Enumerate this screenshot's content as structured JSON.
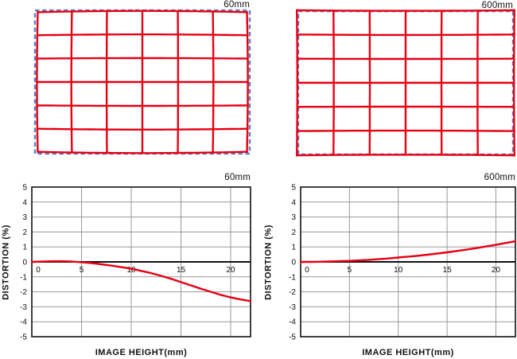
{
  "figure": {
    "background": "#ffffff",
    "description_colors": {
      "red_line": "#e60012",
      "blue_dashed_reference": "#5f7fc4",
      "gridline_gray": "#999999",
      "axis_black": "#111111"
    }
  },
  "grid_figures": [
    {
      "title": "60mm",
      "distortion_type": "barrel",
      "rows": 6,
      "cols": 6,
      "reference_style": "blue-dashed-rectangle",
      "grid_style": "red-solid-grid",
      "distortion_k": -0.026
    },
    {
      "title": "600mm",
      "distortion_type": "pincushion",
      "rows": 6,
      "cols": 6,
      "reference_style": "blue-dashed-rectangle",
      "grid_style": "red-solid-grid",
      "distortion_k": 0.013
    }
  ],
  "chart_data": [
    {
      "type": "line",
      "title": "60mm",
      "xlabel": "IMAGE HEIGHT(mm)",
      "ylabel": "DISTORTION (%)",
      "xlim": [
        0,
        22
      ],
      "ylim": [
        -5,
        5
      ],
      "xticks": [
        0,
        5,
        10,
        15,
        20
      ],
      "yticks": [
        5,
        4,
        3,
        2,
        1,
        0,
        -1,
        -2,
        -3,
        -4,
        -5
      ],
      "grid": "horizontal every 1 unit, vertical at xticks",
      "legend": "none",
      "series": [
        {
          "name": "distortion_pct",
          "color": "#e60012",
          "x": [
            0,
            1,
            2,
            3,
            4,
            5,
            6,
            7,
            8,
            9,
            10,
            11,
            12,
            13,
            14,
            15,
            16,
            17,
            18,
            19,
            20,
            21,
            22
          ],
          "y": [
            0,
            0.02,
            0.04,
            0.05,
            0.02,
            -0.02,
            -0.08,
            -0.16,
            -0.25,
            -0.35,
            -0.46,
            -0.6,
            -0.75,
            -0.93,
            -1.13,
            -1.35,
            -1.57,
            -1.79,
            -2.0,
            -2.2,
            -2.37,
            -2.51,
            -2.62
          ]
        }
      ]
    },
    {
      "type": "line",
      "title": "600mm",
      "xlabel": "IMAGE HEIGHT(mm)",
      "ylabel": "DISTORTION (%)",
      "xlim": [
        0,
        22
      ],
      "ylim": [
        -5,
        5
      ],
      "xticks": [
        0,
        5,
        10,
        15,
        20
      ],
      "yticks": [
        5,
        4,
        3,
        2,
        1,
        0,
        -1,
        -2,
        -3,
        -4,
        -5
      ],
      "grid": "horizontal every 1 unit, vertical at xticks",
      "legend": "none",
      "series": [
        {
          "name": "distortion_pct",
          "color": "#e60012",
          "x": [
            0,
            1,
            2,
            3,
            4,
            5,
            6,
            7,
            8,
            9,
            10,
            11,
            12,
            13,
            14,
            15,
            16,
            17,
            18,
            19,
            20,
            21,
            22
          ],
          "y": [
            0,
            0,
            0.01,
            0.03,
            0.05,
            0.07,
            0.1,
            0.14,
            0.18,
            0.23,
            0.29,
            0.35,
            0.41,
            0.48,
            0.56,
            0.64,
            0.73,
            0.82,
            0.92,
            1.03,
            1.14,
            1.26,
            1.38
          ]
        }
      ]
    }
  ]
}
